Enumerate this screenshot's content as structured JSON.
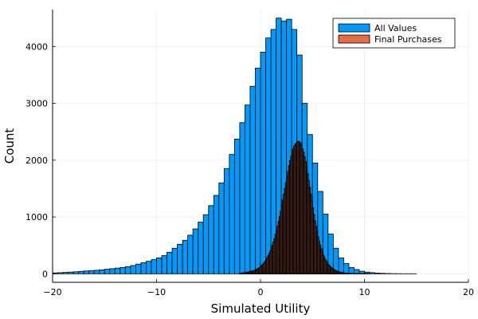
{
  "chart_data": {
    "type": "histogram",
    "title": "",
    "xlabel": "Simulated Utility",
    "ylabel": "Count",
    "xlim": [
      -20,
      20
    ],
    "ylim": [
      -150,
      4650
    ],
    "xticks": [
      -20,
      -10,
      0,
      10,
      20
    ],
    "xtick_labels": [
      "−20",
      "−10",
      "0",
      "10",
      "20"
    ],
    "yticks": [
      0,
      1000,
      2000,
      3000,
      4000
    ],
    "ytick_labels": [
      "0",
      "1000",
      "2000",
      "3000",
      "4000"
    ],
    "grid": true,
    "legend_position": "top-right",
    "series": [
      {
        "name": "All Values",
        "color": "#009AFA",
        "bin_start": -20,
        "bin_width": 0.5,
        "counts": [
          15,
          20,
          25,
          30,
          35,
          42,
          50,
          55,
          62,
          70,
          80,
          90,
          100,
          110,
          125,
          145,
          170,
          195,
          220,
          250,
          280,
          320,
          380,
          450,
          520,
          590,
          680,
          790,
          910,
          1040,
          1200,
          1380,
          1600,
          1850,
          2100,
          2370,
          2660,
          2970,
          3300,
          3620,
          3900,
          4150,
          4300,
          4500,
          4450,
          4480,
          4300,
          3850,
          3000,
          2450,
          1950,
          1450,
          1050,
          700,
          450,
          280,
          180,
          110,
          75,
          45,
          30,
          20,
          12,
          8,
          5,
          3,
          2,
          1,
          1,
          1,
          0
        ]
      },
      {
        "name": "Final Purchases",
        "color": "#E26F46",
        "bin_start": -2.0,
        "bin_width": 0.1,
        "counts": [
          10,
          12,
          14,
          16,
          18,
          20,
          24,
          28,
          32,
          36,
          40,
          45,
          50,
          56,
          62,
          70,
          80,
          90,
          100,
          115,
          130,
          150,
          170,
          195,
          220,
          250,
          285,
          320,
          360,
          400,
          450,
          500,
          560,
          620,
          690,
          760,
          840,
          920,
          1010,
          1100,
          1200,
          1300,
          1400,
          1500,
          1600,
          1700,
          1800,
          1900,
          1990,
          2070,
          2140,
          2200,
          2250,
          2280,
          2300,
          2320,
          2330,
          2320,
          2300,
          2260,
          2200,
          2140,
          2060,
          1970,
          1870,
          1760,
          1640,
          1520,
          1400,
          1280,
          1160,
          1040,
          930,
          830,
          740,
          650,
          570,
          500,
          440,
          380,
          330,
          290,
          250,
          215,
          185,
          160,
          140,
          120,
          105,
          90,
          78,
          66,
          56,
          48,
          40,
          34,
          29,
          24,
          20,
          17,
          14,
          12,
          10,
          9,
          8,
          7,
          6,
          5,
          4,
          4,
          3,
          3,
          2,
          2,
          2,
          2,
          1,
          1,
          1,
          1,
          1,
          1,
          1,
          1,
          0,
          0,
          0,
          0,
          0,
          0,
          0,
          0,
          0,
          0,
          0,
          0,
          0,
          0,
          0,
          0,
          0,
          0,
          0,
          0,
          0,
          0,
          0,
          0,
          0,
          0,
          0,
          0,
          0,
          0,
          0,
          0,
          0,
          0,
          0,
          0,
          0,
          0,
          0
        ]
      }
    ]
  }
}
